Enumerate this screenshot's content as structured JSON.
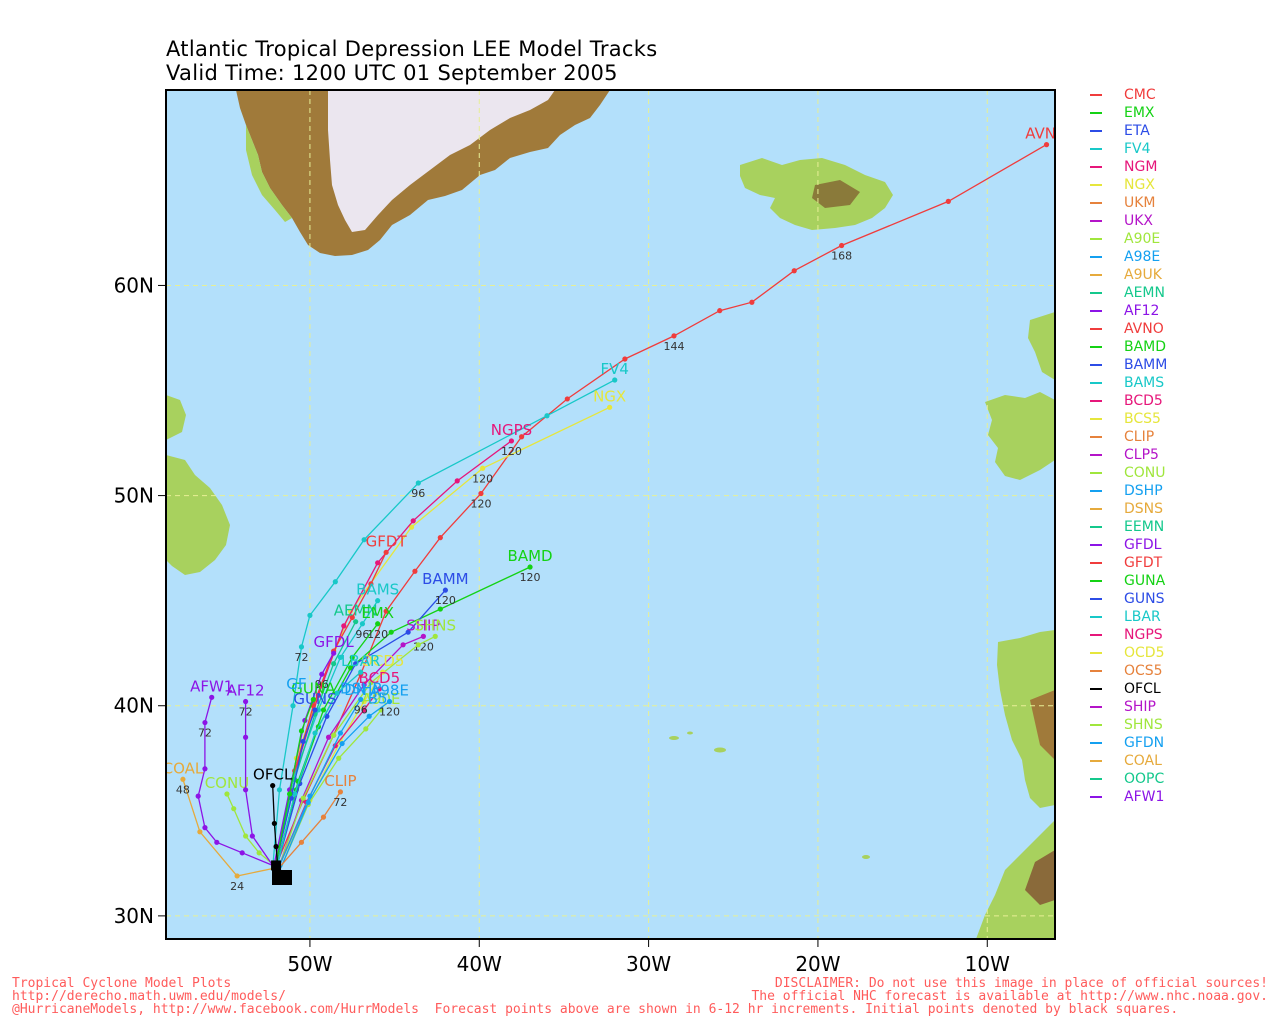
{
  "header": {
    "title_line1": "Atlantic Tropical Depression LEE Model Tracks",
    "title_line2": "Valid Time: 1200 UTC 01 September 2005"
  },
  "axes": {
    "lat_labels": [
      {
        "v": 30,
        "t": "30N"
      },
      {
        "v": 40,
        "t": "40N"
      },
      {
        "v": 50,
        "t": "50N"
      },
      {
        "v": 60,
        "t": "60N"
      }
    ],
    "lon_labels": [
      {
        "v": -50,
        "t": "50W"
      },
      {
        "v": -40,
        "t": "40W"
      },
      {
        "v": -30,
        "t": "30W"
      },
      {
        "v": -20,
        "t": "20W"
      },
      {
        "v": -10,
        "t": "10W"
      }
    ],
    "lon_range": [
      -58.5,
      -6.0
    ],
    "lat_range": [
      28.9,
      69.3
    ]
  },
  "colors": {
    "ocean": "#b3e0fb",
    "land": "#a8d15e",
    "ice": "#ebe6ef",
    "grid": "#e7ef95"
  },
  "legend": [
    {
      "name": "CMC",
      "color": "#f03c3c"
    },
    {
      "name": "EMX",
      "color": "#14d214"
    },
    {
      "name": "ETA",
      "color": "#2c4ce6"
    },
    {
      "name": "FV4",
      "color": "#18c8c8"
    },
    {
      "name": "NGM",
      "color": "#e6167a"
    },
    {
      "name": "NGX",
      "color": "#e6e63c"
    },
    {
      "name": "UKM",
      "color": "#e6823c"
    },
    {
      "name": "UKX",
      "color": "#b414c8"
    },
    {
      "name": "A90E",
      "color": "#a0e63c"
    },
    {
      "name": "A98E",
      "color": "#14a0f0"
    },
    {
      "name": "A9UK",
      "color": "#e6aa3c"
    },
    {
      "name": "AEMN",
      "color": "#14c88c"
    },
    {
      "name": "AF12",
      "color": "#8c14e6"
    },
    {
      "name": "AVNO",
      "color": "#f03c3c"
    },
    {
      "name": "BAMD",
      "color": "#14d214"
    },
    {
      "name": "BAMM",
      "color": "#2c4ce6"
    },
    {
      "name": "BAMS",
      "color": "#18c8c8"
    },
    {
      "name": "BCD5",
      "color": "#e6167a"
    },
    {
      "name": "BCS5",
      "color": "#e6e63c"
    },
    {
      "name": "CLIP",
      "color": "#e6823c"
    },
    {
      "name": "CLP5",
      "color": "#b414c8"
    },
    {
      "name": "CONU",
      "color": "#a0e63c"
    },
    {
      "name": "DSHP",
      "color": "#14a0f0"
    },
    {
      "name": "DSNS",
      "color": "#e6aa3c"
    },
    {
      "name": "EEMN",
      "color": "#14c88c"
    },
    {
      "name": "GFDL",
      "color": "#8c14e6"
    },
    {
      "name": "GFDT",
      "color": "#f03c3c"
    },
    {
      "name": "GUNA",
      "color": "#14d214"
    },
    {
      "name": "GUNS",
      "color": "#2c4ce6"
    },
    {
      "name": "LBAR",
      "color": "#18c8c8"
    },
    {
      "name": "NGPS",
      "color": "#e6167a"
    },
    {
      "name": "OCD5",
      "color": "#e6e63c"
    },
    {
      "name": "OCS5",
      "color": "#e6823c"
    },
    {
      "name": "OFCL",
      "color": "#000000"
    },
    {
      "name": "SHIP",
      "color": "#b414c8"
    },
    {
      "name": "SHNS",
      "color": "#a0e63c"
    },
    {
      "name": "GFDN",
      "color": "#14a0f0"
    },
    {
      "name": "COAL",
      "color": "#e6aa3c"
    },
    {
      "name": "OOPC",
      "color": "#14c88c"
    },
    {
      "name": "AFW1",
      "color": "#8c14e6"
    }
  ],
  "tracks": [
    {
      "model": "AVNO",
      "color": "#f03c3c",
      "label": "AVNO",
      "points": [
        [
          -51.9,
          32.6
        ],
        [
          -50.4,
          35.5
        ],
        [
          -48.6,
          38.6
        ],
        [
          -47.0,
          41.5
        ],
        [
          -45.5,
          44.5
        ],
        [
          -43.8,
          46.4
        ],
        [
          -42.3,
          48.0
        ],
        [
          -39.9,
          50.1
        ],
        [
          -37.5,
          52.8
        ],
        [
          -34.8,
          54.6
        ],
        [
          -31.4,
          56.5
        ],
        [
          -28.5,
          57.6
        ],
        [
          -25.8,
          58.8
        ],
        [
          -23.9,
          59.2
        ],
        [
          -21.4,
          60.7
        ],
        [
          -18.6,
          61.9
        ],
        [
          -12.3,
          64.0
        ],
        [
          -6.5,
          66.7
        ]
      ],
      "numbers": [
        {
          "lon": -39.9,
          "lat": 50.1,
          "t": "120"
        },
        {
          "lon": -28.5,
          "lat": 57.6,
          "t": "144"
        },
        {
          "lon": -18.6,
          "lat": 61.9,
          "t": "168"
        }
      ]
    },
    {
      "model": "FV4",
      "color": "#18c8c8",
      "label": "FV4",
      "points": [
        [
          -52.2,
          32.3
        ],
        [
          -51.8,
          36.0
        ],
        [
          -51.0,
          40.0
        ],
        [
          -50.5,
          42.8
        ],
        [
          -50.0,
          44.3
        ],
        [
          -48.5,
          45.9
        ],
        [
          -46.8,
          47.9
        ],
        [
          -43.6,
          50.6
        ],
        [
          -36.0,
          53.8
        ],
        [
          -32.0,
          55.5
        ]
      ],
      "numbers": [
        {
          "lon": -50.5,
          "lat": 42.8,
          "t": "72"
        },
        {
          "lon": -43.6,
          "lat": 50.6,
          "t": "96"
        }
      ]
    },
    {
      "model": "NGX",
      "color": "#e6e63c",
      "label": "NGX",
      "points": [
        [
          -52.0,
          32.5
        ],
        [
          -50.8,
          37.5
        ],
        [
          -49.3,
          41.0
        ],
        [
          -47.6,
          44.5
        ],
        [
          -44.0,
          48.5
        ],
        [
          -39.8,
          51.3
        ],
        [
          -32.3,
          54.2
        ]
      ],
      "numbers": [
        {
          "lon": -39.8,
          "lat": 51.3,
          "t": "120"
        }
      ]
    },
    {
      "model": "NGPS",
      "color": "#e6167a",
      "label": "NGPS",
      "points": [
        [
          -52.1,
          32.4
        ],
        [
          -51.0,
          36.5
        ],
        [
          -49.5,
          40.5
        ],
        [
          -48.0,
          43.8
        ],
        [
          -46.0,
          46.8
        ],
        [
          -43.9,
          48.8
        ],
        [
          -41.3,
          50.7
        ],
        [
          -38.1,
          52.6
        ]
      ],
      "numbers": [
        {
          "lon": -38.1,
          "lat": 52.6,
          "t": "120"
        }
      ]
    },
    {
      "model": "GFDT",
      "color": "#f03c3c",
      "label": "GFDT",
      "points": [
        [
          -52.0,
          32.6
        ],
        [
          -50.9,
          36.9
        ],
        [
          -49.8,
          40.0
        ],
        [
          -48.6,
          42.6
        ],
        [
          -47.5,
          44.2
        ],
        [
          -46.4,
          45.8
        ],
        [
          -45.5,
          47.3
        ]
      ],
      "numbers": []
    },
    {
      "model": "BAMD",
      "color": "#14d214",
      "label": "BAMD",
      "points": [
        [
          -51.9,
          32.5
        ],
        [
          -50.8,
          36.0
        ],
        [
          -49.5,
          39.0
        ],
        [
          -47.6,
          41.8
        ],
        [
          -45.2,
          43.5
        ],
        [
          -42.3,
          44.6
        ],
        [
          -37.0,
          46.6
        ]
      ],
      "numbers": [
        {
          "lon": -37.0,
          "lat": 46.6,
          "t": "120"
        }
      ]
    },
    {
      "model": "BAMM",
      "color": "#2c4ce6",
      "label": "BAMM",
      "points": [
        [
          -51.9,
          32.5
        ],
        [
          -50.6,
          36.3
        ],
        [
          -49.0,
          39.5
        ],
        [
          -47.3,
          42.0
        ],
        [
          -44.2,
          43.5
        ],
        [
          -42.0,
          45.5
        ]
      ],
      "numbers": [
        {
          "lon": -42.0,
          "lat": 45.5,
          "t": "120"
        }
      ]
    },
    {
      "model": "BAMS",
      "color": "#18c8c8",
      "label": "BAMS",
      "points": [
        [
          -52.0,
          32.6
        ],
        [
          -51.0,
          36.5
        ],
        [
          -49.5,
          39.8
        ],
        [
          -48.2,
          42.3
        ],
        [
          -46.9,
          43.9
        ],
        [
          -46.0,
          45.0
        ]
      ],
      "numbers": [
        {
          "lon": -46.9,
          "lat": 43.9,
          "t": "96"
        }
      ]
    },
    {
      "model": "AEMN",
      "color": "#14c88c",
      "label": "AEMN",
      "points": [
        [
          -52.0,
          32.6
        ],
        [
          -50.9,
          36.5
        ],
        [
          -49.7,
          39.6
        ],
        [
          -48.6,
          42.0
        ],
        [
          -47.3,
          44.0
        ]
      ],
      "numbers": []
    },
    {
      "model": "EMX",
      "color": "#14d214",
      "label": "EMX",
      "points": [
        [
          -51.9,
          32.6
        ],
        [
          -50.7,
          36.4
        ],
        [
          -49.2,
          39.8
        ],
        [
          -47.5,
          42.3
        ],
        [
          -46.0,
          43.9
        ]
      ],
      "numbers": [
        {
          "lon": -46.0,
          "lat": 43.9,
          "t": "120"
        }
      ]
    },
    {
      "model": "SHIP",
      "color": "#b414c8",
      "label": "SHIP",
      "points": [
        [
          -51.8,
          32.4
        ],
        [
          -50.5,
          35.5
        ],
        [
          -48.9,
          38.5
        ],
        [
          -46.8,
          41.0
        ],
        [
          -44.5,
          42.9
        ],
        [
          -43.3,
          43.3
        ]
      ],
      "numbers": [
        {
          "lon": -43.3,
          "lat": 43.3,
          "t": "120"
        }
      ]
    },
    {
      "model": "SHNS",
      "color": "#a0e63c",
      "label": "SHNS",
      "points": [
        [
          -51.8,
          32.4
        ],
        [
          -50.4,
          35.6
        ],
        [
          -48.6,
          38.6
        ],
        [
          -46.4,
          41.1
        ],
        [
          -43.6,
          42.9
        ],
        [
          -42.6,
          43.3
        ]
      ],
      "numbers": []
    },
    {
      "model": "GFDL",
      "color": "#8c14e6",
      "label": "GFDL",
      "points": [
        [
          -52.1,
          32.5
        ],
        [
          -51.2,
          36.0
        ],
        [
          -50.3,
          39.3
        ],
        [
          -49.3,
          41.5
        ],
        [
          -48.6,
          42.5
        ]
      ],
      "numbers": [
        {
          "lon": -49.3,
          "lat": 41.5,
          "t": "96"
        }
      ]
    },
    {
      "model": "OCD5",
      "color": "#e6e63c",
      "label": "OCD5",
      "points": [
        [
          -51.8,
          32.4
        ],
        [
          -50.0,
          35.5
        ],
        [
          -48.2,
          38.3
        ],
        [
          -46.8,
          40.2
        ],
        [
          -45.7,
          41.6
        ]
      ],
      "numbers": []
    },
    {
      "model": "BCD5",
      "color": "#e6167a",
      "label": "BCD5",
      "points": [
        [
          -51.8,
          32.4
        ],
        [
          -50.2,
          35.4
        ],
        [
          -48.5,
          38.1
        ],
        [
          -46.8,
          39.8
        ],
        [
          -45.9,
          40.8
        ]
      ],
      "numbers": []
    },
    {
      "model": "DSHP",
      "color": "#14a0f0",
      "label": "DSHP",
      "points": [
        [
          -51.8,
          32.4
        ],
        [
          -50.0,
          35.7
        ],
        [
          -48.2,
          38.7
        ],
        [
          -47.0,
          40.3
        ]
      ],
      "numbers": [
        {
          "lon": -47.0,
          "lat": 40.3,
          "t": "96"
        }
      ]
    },
    {
      "model": "A90E",
      "color": "#a0e63c",
      "label": "A90E",
      "points": [
        [
          -51.7,
          32.3
        ],
        [
          -50.1,
          35.3
        ],
        [
          -48.3,
          37.5
        ],
        [
          -46.7,
          38.9
        ],
        [
          -45.8,
          39.8
        ]
      ],
      "numbers": []
    },
    {
      "model": "A98E",
      "color": "#14a0f0",
      "label": "A98E",
      "points": [
        [
          -51.7,
          32.3
        ],
        [
          -50.1,
          35.4
        ],
        [
          -48.1,
          38.2
        ],
        [
          -46.5,
          39.5
        ],
        [
          -45.3,
          40.2
        ]
      ],
      "numbers": [
        {
          "lon": -45.3,
          "lat": 40.2,
          "t": "120"
        }
      ]
    },
    {
      "model": "LBAR",
      "color": "#18c8c8",
      "label": "LBAR",
      "points": [
        [
          -51.9,
          32.5
        ],
        [
          -50.9,
          35.8
        ],
        [
          -49.7,
          38.7
        ],
        [
          -48.4,
          40.6
        ],
        [
          -47.0,
          41.6
        ]
      ],
      "numbers": []
    },
    {
      "model": "GUNS",
      "color": "#2c4ce6",
      "label": "GUNS",
      "points": [
        [
          -52.0,
          32.5
        ],
        [
          -51.1,
          35.6
        ],
        [
          -50.4,
          38.3
        ],
        [
          -49.7,
          39.8
        ]
      ],
      "numbers": []
    },
    {
      "model": "GUNA",
      "color": "#14d214",
      "label": "GUNA",
      "points": [
        [
          -52.0,
          32.5
        ],
        [
          -51.2,
          35.8
        ],
        [
          -50.5,
          38.8
        ],
        [
          -49.8,
          40.3
        ]
      ],
      "numbers": []
    },
    {
      "model": "CLIP",
      "color": "#e6823c",
      "label": "CLIP",
      "points": [
        [
          -51.7,
          32.4
        ],
        [
          -50.5,
          33.5
        ],
        [
          -49.2,
          34.7
        ],
        [
          -48.2,
          35.9
        ]
      ],
      "numbers": [
        {
          "lon": -48.2,
          "lat": 35.9,
          "t": "72"
        }
      ]
    },
    {
      "model": "OFCL",
      "color": "#000000",
      "label": "OFCL",
      "points": [
        [
          -51.9,
          32.3
        ],
        [
          -52.0,
          33.3
        ],
        [
          -52.1,
          34.4
        ],
        [
          -52.2,
          36.2
        ]
      ],
      "numbers": []
    },
    {
      "model": "CONU",
      "color": "#a0e63c",
      "label": "CONU",
      "points": [
        [
          -52.1,
          32.4
        ],
        [
          -53.0,
          33.0
        ],
        [
          -53.8,
          33.8
        ],
        [
          -54.5,
          35.1
        ],
        [
          -54.9,
          35.8
        ]
      ],
      "numbers": []
    },
    {
      "model": "COAL",
      "color": "#e6aa3c",
      "label": "COAL",
      "points": [
        [
          -51.9,
          32.3
        ],
        [
          -54.3,
          31.9
        ],
        [
          -56.5,
          34.0
        ],
        [
          -57.5,
          36.5
        ]
      ],
      "numbers": [
        {
          "lon": -54.3,
          "lat": 31.9,
          "t": "24"
        },
        {
          "lon": -57.5,
          "lat": 36.5,
          "t": "48"
        }
      ]
    },
    {
      "model": "AFW1",
      "color": "#8c14e6",
      "label": "AFW1",
      "points": [
        [
          -52.2,
          32.4
        ],
        [
          -54.0,
          33.0
        ],
        [
          -55.5,
          33.5
        ],
        [
          -56.2,
          34.2
        ],
        [
          -56.6,
          35.7
        ],
        [
          -56.2,
          37.0
        ],
        [
          -56.2,
          39.2
        ],
        [
          -55.8,
          40.4
        ]
      ],
      "numbers": [
        {
          "lon": -56.2,
          "lat": 39.2,
          "t": "72"
        }
      ]
    },
    {
      "model": "AF12",
      "color": "#8c14e6",
      "label": "AF12",
      "points": [
        [
          -52.2,
          32.4
        ],
        [
          -53.4,
          33.8
        ],
        [
          -53.8,
          36.0
        ],
        [
          -53.8,
          38.5
        ],
        [
          -53.8,
          40.2
        ]
      ],
      "numbers": [
        {
          "lon": -53.8,
          "lat": 40.2,
          "t": "72"
        }
      ]
    }
  ],
  "track_labels": [
    {
      "lon": -50.8,
      "lat": 40.8,
      "t": "GF"
    },
    {
      "lon": -47.3,
      "lat": 40.5,
      "t": "DN"
    },
    {
      "lon": -46.0,
      "lat": 40.1,
      "t": "B5"
    }
  ],
  "footer": {
    "left_line1": "Tropical Cyclone Model Plots",
    "left_line2": "http://derecho.math.uwm.edu/models/",
    "left_line3": "@HurricaneModels, http://www.facebook.com/HurrModels  Forecast points above are shown in 6-12 hr increments. Initial points denoted by black squares.",
    "right_line1": "DISCLAIMER: Do not use this image in place of official sources!",
    "right_line2": "The official NHC forecast is available at http://www.nhc.noaa.gov."
  }
}
